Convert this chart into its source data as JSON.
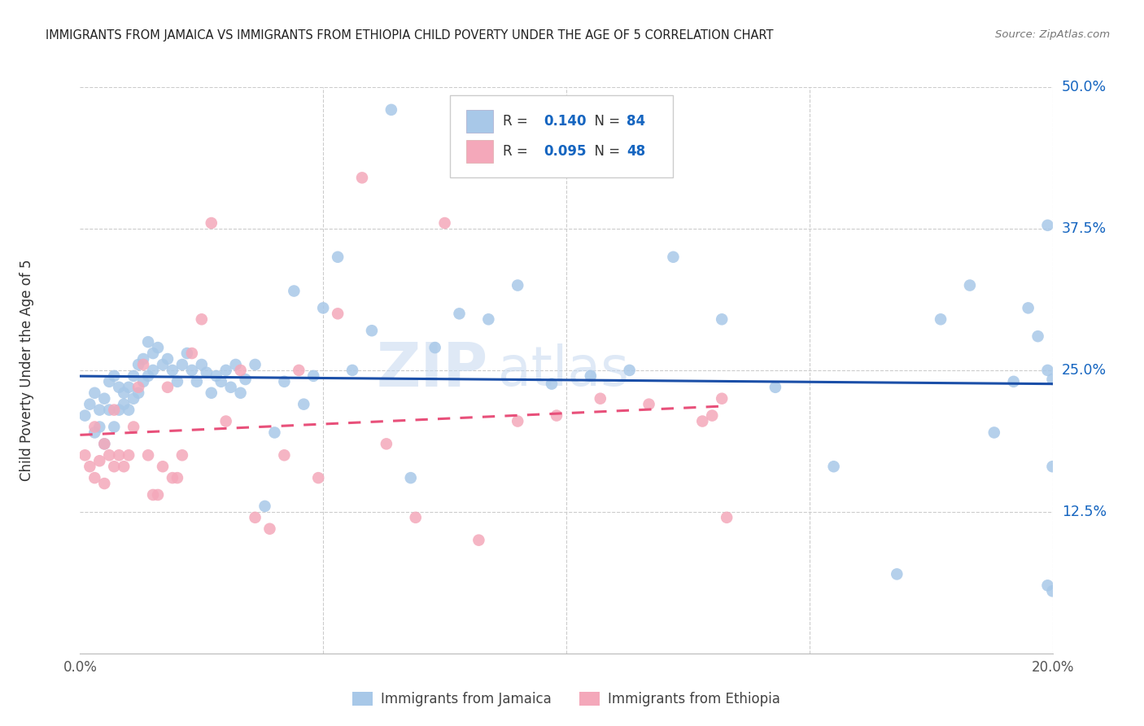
{
  "title": "IMMIGRANTS FROM JAMAICA VS IMMIGRANTS FROM ETHIOPIA CHILD POVERTY UNDER THE AGE OF 5 CORRELATION CHART",
  "source": "Source: ZipAtlas.com",
  "ylabel_label": "Child Poverty Under the Age of 5",
  "ylabel_ticks_vals": [
    0.125,
    0.25,
    0.375,
    0.5
  ],
  "ylabel_ticks_labels": [
    "12.5%",
    "25.0%",
    "37.5%",
    "50.0%"
  ],
  "xticks_vals": [
    0.0,
    0.05,
    0.1,
    0.15,
    0.2
  ],
  "xticks_labels": [
    "0.0%",
    "",
    "",
    "",
    "20.0%"
  ],
  "legend_label1": "Immigrants from Jamaica",
  "legend_label2": "Immigrants from Ethiopia",
  "R1": "0.140",
  "N1": "84",
  "R2": "0.095",
  "N2": "48",
  "color_jamaica": "#A8C8E8",
  "color_ethiopia": "#F4A8BA",
  "color_jamaica_line": "#1B4FA8",
  "color_ethiopia_line": "#E8507A",
  "watermark_zip": "ZIP",
  "watermark_atlas": "atlas",
  "xlim": [
    0.0,
    0.2
  ],
  "ylim": [
    0.0,
    0.5
  ],
  "jamaica_x": [
    0.001,
    0.002,
    0.003,
    0.003,
    0.004,
    0.004,
    0.005,
    0.005,
    0.006,
    0.006,
    0.007,
    0.007,
    0.008,
    0.008,
    0.009,
    0.009,
    0.01,
    0.01,
    0.011,
    0.011,
    0.012,
    0.012,
    0.013,
    0.013,
    0.014,
    0.014,
    0.015,
    0.015,
    0.016,
    0.017,
    0.018,
    0.019,
    0.02,
    0.021,
    0.022,
    0.023,
    0.024,
    0.025,
    0.026,
    0.027,
    0.028,
    0.029,
    0.03,
    0.031,
    0.032,
    0.033,
    0.034,
    0.036,
    0.038,
    0.04,
    0.042,
    0.044,
    0.046,
    0.048,
    0.05,
    0.053,
    0.056,
    0.06,
    0.064,
    0.068,
    0.073,
    0.078,
    0.084,
    0.09,
    0.097,
    0.105,
    0.113,
    0.122,
    0.132,
    0.143,
    0.155,
    0.168,
    0.177,
    0.183,
    0.188,
    0.192,
    0.195,
    0.197,
    0.199,
    0.199,
    0.199,
    0.2,
    0.2,
    0.2
  ],
  "jamaica_y": [
    0.21,
    0.22,
    0.195,
    0.23,
    0.2,
    0.215,
    0.185,
    0.225,
    0.215,
    0.24,
    0.2,
    0.245,
    0.215,
    0.235,
    0.22,
    0.23,
    0.215,
    0.235,
    0.225,
    0.245,
    0.23,
    0.255,
    0.24,
    0.26,
    0.245,
    0.275,
    0.25,
    0.265,
    0.27,
    0.255,
    0.26,
    0.25,
    0.24,
    0.255,
    0.265,
    0.25,
    0.24,
    0.255,
    0.248,
    0.23,
    0.245,
    0.24,
    0.25,
    0.235,
    0.255,
    0.23,
    0.242,
    0.255,
    0.13,
    0.195,
    0.24,
    0.32,
    0.22,
    0.245,
    0.305,
    0.35,
    0.25,
    0.285,
    0.48,
    0.155,
    0.27,
    0.3,
    0.295,
    0.325,
    0.238,
    0.245,
    0.25,
    0.35,
    0.295,
    0.235,
    0.165,
    0.07,
    0.295,
    0.325,
    0.195,
    0.24,
    0.305,
    0.28,
    0.06,
    0.25,
    0.378,
    0.055,
    0.242,
    0.165
  ],
  "ethiopia_x": [
    0.001,
    0.002,
    0.003,
    0.003,
    0.004,
    0.005,
    0.005,
    0.006,
    0.007,
    0.007,
    0.008,
    0.009,
    0.01,
    0.011,
    0.012,
    0.013,
    0.014,
    0.015,
    0.016,
    0.017,
    0.018,
    0.019,
    0.02,
    0.021,
    0.023,
    0.025,
    0.027,
    0.03,
    0.033,
    0.036,
    0.039,
    0.042,
    0.045,
    0.049,
    0.053,
    0.058,
    0.063,
    0.069,
    0.075,
    0.082,
    0.09,
    0.098,
    0.107,
    0.117,
    0.128,
    0.13,
    0.132,
    0.133
  ],
  "ethiopia_y": [
    0.175,
    0.165,
    0.155,
    0.2,
    0.17,
    0.185,
    0.15,
    0.175,
    0.165,
    0.215,
    0.175,
    0.165,
    0.175,
    0.2,
    0.235,
    0.255,
    0.175,
    0.14,
    0.14,
    0.165,
    0.235,
    0.155,
    0.155,
    0.175,
    0.265,
    0.295,
    0.38,
    0.205,
    0.25,
    0.12,
    0.11,
    0.175,
    0.25,
    0.155,
    0.3,
    0.42,
    0.185,
    0.12,
    0.38,
    0.1,
    0.205,
    0.21,
    0.225,
    0.22,
    0.205,
    0.21,
    0.225,
    0.12
  ]
}
